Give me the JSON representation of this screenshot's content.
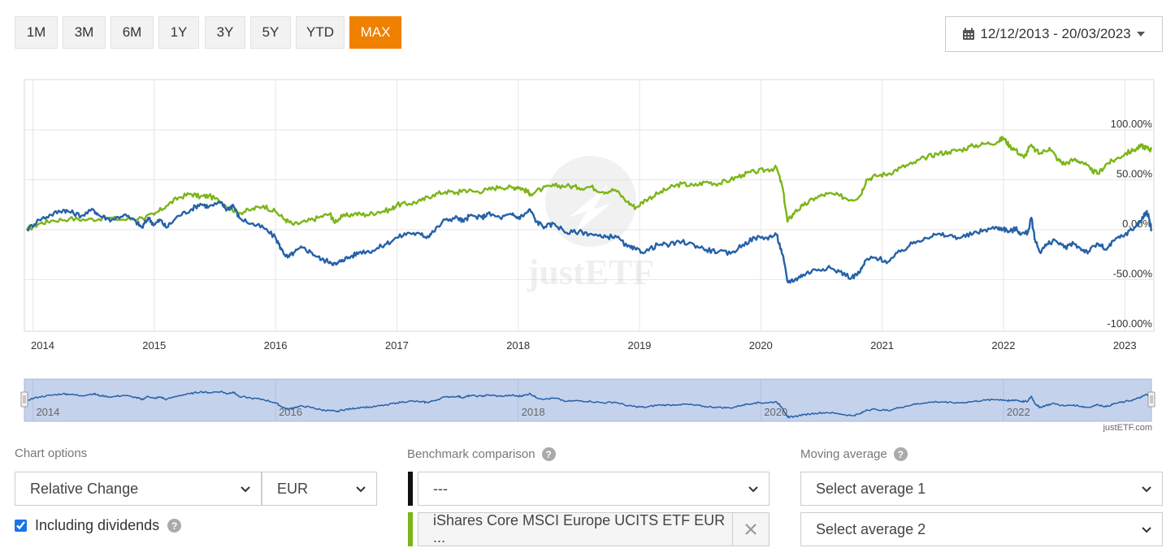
{
  "toolbar": {
    "ranges": [
      {
        "label": "1M",
        "active": false
      },
      {
        "label": "3M",
        "active": false
      },
      {
        "label": "6M",
        "active": false
      },
      {
        "label": "1Y",
        "active": false
      },
      {
        "label": "3Y",
        "active": false
      },
      {
        "label": "5Y",
        "active": false
      },
      {
        "label": "YTD",
        "active": false
      },
      {
        "label": "MAX",
        "active": true
      }
    ],
    "date_range": "12/12/2013 - 20/03/2023",
    "date_icon": "calendar-icon"
  },
  "watermark": "justETF",
  "credit": "justETF.com",
  "navigator": {
    "tick_labels": [
      "2014",
      "2016",
      "2018",
      "2020",
      "2022"
    ]
  },
  "chart_data": {
    "type": "line",
    "title": "",
    "xlabel": "",
    "ylabel": "",
    "x_tick_labels": [
      "2014",
      "2015",
      "2016",
      "2017",
      "2018",
      "2019",
      "2020",
      "2021",
      "2022",
      "2023"
    ],
    "y_tick_labels": [
      "100.00%",
      "50.00%",
      "0.00%",
      "-50.00%",
      "-100.00%"
    ],
    "ylim": [
      -100,
      100
    ],
    "y_unit": "%",
    "xlim": [
      2013.95,
      2023.22
    ],
    "grid": true,
    "series": [
      {
        "name": "iShares Core MSCI Europe UCITS ETF EUR ...",
        "color": "#7cb518",
        "points": [
          [
            2013.95,
            0
          ],
          [
            2014.05,
            6
          ],
          [
            2014.15,
            9
          ],
          [
            2014.3,
            11
          ],
          [
            2014.45,
            10
          ],
          [
            2014.6,
            12
          ],
          [
            2014.75,
            10
          ],
          [
            2014.9,
            12
          ],
          [
            2015.0,
            15
          ],
          [
            2015.1,
            24
          ],
          [
            2015.2,
            32
          ],
          [
            2015.3,
            36
          ],
          [
            2015.38,
            33
          ],
          [
            2015.45,
            34
          ],
          [
            2015.55,
            28
          ],
          [
            2015.62,
            22
          ],
          [
            2015.7,
            17
          ],
          [
            2015.8,
            20
          ],
          [
            2015.9,
            24
          ],
          [
            2016.0,
            18
          ],
          [
            2016.08,
            10
          ],
          [
            2016.15,
            5
          ],
          [
            2016.25,
            8
          ],
          [
            2016.35,
            12
          ],
          [
            2016.45,
            16
          ],
          [
            2016.48,
            8
          ],
          [
            2016.55,
            13
          ],
          [
            2016.65,
            16
          ],
          [
            2016.75,
            15
          ],
          [
            2016.85,
            18
          ],
          [
            2016.95,
            20
          ],
          [
            2017.0,
            25
          ],
          [
            2017.1,
            26
          ],
          [
            2017.2,
            29
          ],
          [
            2017.3,
            35
          ],
          [
            2017.4,
            38
          ],
          [
            2017.5,
            37
          ],
          [
            2017.55,
            40
          ],
          [
            2017.65,
            38
          ],
          [
            2017.75,
            40
          ],
          [
            2017.85,
            43
          ],
          [
            2017.95,
            42
          ],
          [
            2018.0,
            43
          ],
          [
            2018.05,
            40
          ],
          [
            2018.1,
            36
          ],
          [
            2018.2,
            41
          ],
          [
            2018.3,
            44
          ],
          [
            2018.4,
            44
          ],
          [
            2018.5,
            42
          ],
          [
            2018.6,
            43
          ],
          [
            2018.7,
            38
          ],
          [
            2018.8,
            40
          ],
          [
            2018.9,
            28
          ],
          [
            2018.97,
            22
          ],
          [
            2019.05,
            30
          ],
          [
            2019.15,
            36
          ],
          [
            2019.25,
            42
          ],
          [
            2019.35,
            46
          ],
          [
            2019.45,
            44
          ],
          [
            2019.55,
            48
          ],
          [
            2019.65,
            46
          ],
          [
            2019.75,
            50
          ],
          [
            2019.85,
            55
          ],
          [
            2019.95,
            58
          ],
          [
            2020.05,
            60
          ],
          [
            2020.13,
            62
          ],
          [
            2020.18,
            42
          ],
          [
            2020.22,
            8
          ],
          [
            2020.28,
            18
          ],
          [
            2020.35,
            24
          ],
          [
            2020.45,
            32
          ],
          [
            2020.55,
            36
          ],
          [
            2020.65,
            34
          ],
          [
            2020.75,
            30
          ],
          [
            2020.82,
            34
          ],
          [
            2020.87,
            50
          ],
          [
            2020.95,
            54
          ],
          [
            2021.05,
            56
          ],
          [
            2021.15,
            62
          ],
          [
            2021.25,
            66
          ],
          [
            2021.35,
            72
          ],
          [
            2021.45,
            76
          ],
          [
            2021.55,
            78
          ],
          [
            2021.65,
            80
          ],
          [
            2021.75,
            84
          ],
          [
            2021.85,
            86
          ],
          [
            2021.95,
            88
          ],
          [
            2022.0,
            92
          ],
          [
            2022.05,
            84
          ],
          [
            2022.1,
            80
          ],
          [
            2022.17,
            72
          ],
          [
            2022.22,
            84
          ],
          [
            2022.3,
            76
          ],
          [
            2022.38,
            82
          ],
          [
            2022.45,
            70
          ],
          [
            2022.5,
            66
          ],
          [
            2022.58,
            70
          ],
          [
            2022.65,
            68
          ],
          [
            2022.72,
            60
          ],
          [
            2022.78,
            56
          ],
          [
            2022.85,
            66
          ],
          [
            2022.92,
            70
          ],
          [
            2023.0,
            76
          ],
          [
            2023.08,
            80
          ],
          [
            2023.14,
            84
          ],
          [
            2023.18,
            82
          ],
          [
            2023.22,
            80
          ]
        ]
      },
      {
        "name": "",
        "color": "#2561a8",
        "points": [
          [
            2013.95,
            0
          ],
          [
            2014.05,
            10
          ],
          [
            2014.15,
            15
          ],
          [
            2014.25,
            20
          ],
          [
            2014.3,
            18
          ],
          [
            2014.4,
            14
          ],
          [
            2014.5,
            20
          ],
          [
            2014.55,
            14
          ],
          [
            2014.65,
            10
          ],
          [
            2014.75,
            15
          ],
          [
            2014.85,
            8
          ],
          [
            2014.9,
            2
          ],
          [
            2014.95,
            12
          ],
          [
            2015.0,
            5
          ],
          [
            2015.05,
            10
          ],
          [
            2015.1,
            2
          ],
          [
            2015.2,
            14
          ],
          [
            2015.3,
            20
          ],
          [
            2015.38,
            26
          ],
          [
            2015.45,
            23
          ],
          [
            2015.55,
            27
          ],
          [
            2015.6,
            20
          ],
          [
            2015.65,
            25
          ],
          [
            2015.7,
            12
          ],
          [
            2015.8,
            6
          ],
          [
            2015.9,
            2
          ],
          [
            2016.0,
            -8
          ],
          [
            2016.05,
            -20
          ],
          [
            2016.1,
            -28
          ],
          [
            2016.15,
            -23
          ],
          [
            2016.22,
            -18
          ],
          [
            2016.3,
            -23
          ],
          [
            2016.38,
            -30
          ],
          [
            2016.45,
            -32
          ],
          [
            2016.5,
            -35
          ],
          [
            2016.55,
            -30
          ],
          [
            2016.62,
            -27
          ],
          [
            2016.7,
            -22
          ],
          [
            2016.8,
            -21
          ],
          [
            2016.9,
            -15
          ],
          [
            2017.0,
            -8
          ],
          [
            2017.1,
            -3
          ],
          [
            2017.2,
            -5
          ],
          [
            2017.25,
            -7
          ],
          [
            2017.3,
            -2
          ],
          [
            2017.4,
            10
          ],
          [
            2017.5,
            12
          ],
          [
            2017.55,
            8
          ],
          [
            2017.6,
            14
          ],
          [
            2017.7,
            12
          ],
          [
            2017.75,
            16
          ],
          [
            2017.85,
            12
          ],
          [
            2017.95,
            15
          ],
          [
            2018.0,
            12
          ],
          [
            2018.05,
            15
          ],
          [
            2018.1,
            20
          ],
          [
            2018.15,
            8
          ],
          [
            2018.22,
            3
          ],
          [
            2018.3,
            6
          ],
          [
            2018.4,
            -3
          ],
          [
            2018.5,
            -2
          ],
          [
            2018.6,
            -4
          ],
          [
            2018.7,
            -8
          ],
          [
            2018.8,
            -6
          ],
          [
            2018.9,
            -17
          ],
          [
            2018.97,
            -20
          ],
          [
            2019.05,
            -22
          ],
          [
            2019.15,
            -15
          ],
          [
            2019.25,
            -15
          ],
          [
            2019.35,
            -12
          ],
          [
            2019.45,
            -15
          ],
          [
            2019.55,
            -20
          ],
          [
            2019.65,
            -22
          ],
          [
            2019.75,
            -24
          ],
          [
            2019.85,
            -15
          ],
          [
            2019.95,
            -8
          ],
          [
            2020.05,
            -8
          ],
          [
            2020.13,
            -5
          ],
          [
            2020.18,
            -25
          ],
          [
            2020.22,
            -52
          ],
          [
            2020.28,
            -50
          ],
          [
            2020.35,
            -45
          ],
          [
            2020.45,
            -40
          ],
          [
            2020.55,
            -38
          ],
          [
            2020.65,
            -42
          ],
          [
            2020.75,
            -48
          ],
          [
            2020.82,
            -42
          ],
          [
            2020.87,
            -30
          ],
          [
            2020.95,
            -28
          ],
          [
            2021.05,
            -32
          ],
          [
            2021.15,
            -22
          ],
          [
            2021.25,
            -14
          ],
          [
            2021.35,
            -8
          ],
          [
            2021.45,
            -5
          ],
          [
            2021.55,
            -6
          ],
          [
            2021.65,
            -8
          ],
          [
            2021.75,
            -4
          ],
          [
            2021.85,
            0
          ],
          [
            2021.95,
            2
          ],
          [
            2022.0,
            1
          ],
          [
            2022.05,
            -2
          ],
          [
            2022.1,
            1
          ],
          [
            2022.15,
            -4
          ],
          [
            2022.2,
            -3
          ],
          [
            2022.23,
            12
          ],
          [
            2022.26,
            -10
          ],
          [
            2022.3,
            -22
          ],
          [
            2022.35,
            -16
          ],
          [
            2022.42,
            -10
          ],
          [
            2022.5,
            -18
          ],
          [
            2022.58,
            -14
          ],
          [
            2022.65,
            -20
          ],
          [
            2022.7,
            -22
          ],
          [
            2022.78,
            -14
          ],
          [
            2022.85,
            -20
          ],
          [
            2022.92,
            -10
          ],
          [
            2023.0,
            -5
          ],
          [
            2023.08,
            2
          ],
          [
            2023.14,
            10
          ],
          [
            2023.18,
            18
          ],
          [
            2023.2,
            12
          ],
          [
            2023.22,
            0
          ]
        ]
      }
    ],
    "legend": "none"
  },
  "options": {
    "title": "Chart options",
    "display_select": "Relative Change",
    "currency_select": "EUR",
    "dividends_label": "Including dividends",
    "dividends_checked": true
  },
  "benchmark": {
    "title": "Benchmark comparison",
    "select_empty": "---",
    "selected_fund": "iShares Core MSCI Europe UCITS ETF EUR ...",
    "bar_colors": [
      "#111111",
      "#7cb518"
    ]
  },
  "moving_average": {
    "title": "Moving average",
    "select_1": "Select average 1",
    "select_2": "Select average 2"
  }
}
